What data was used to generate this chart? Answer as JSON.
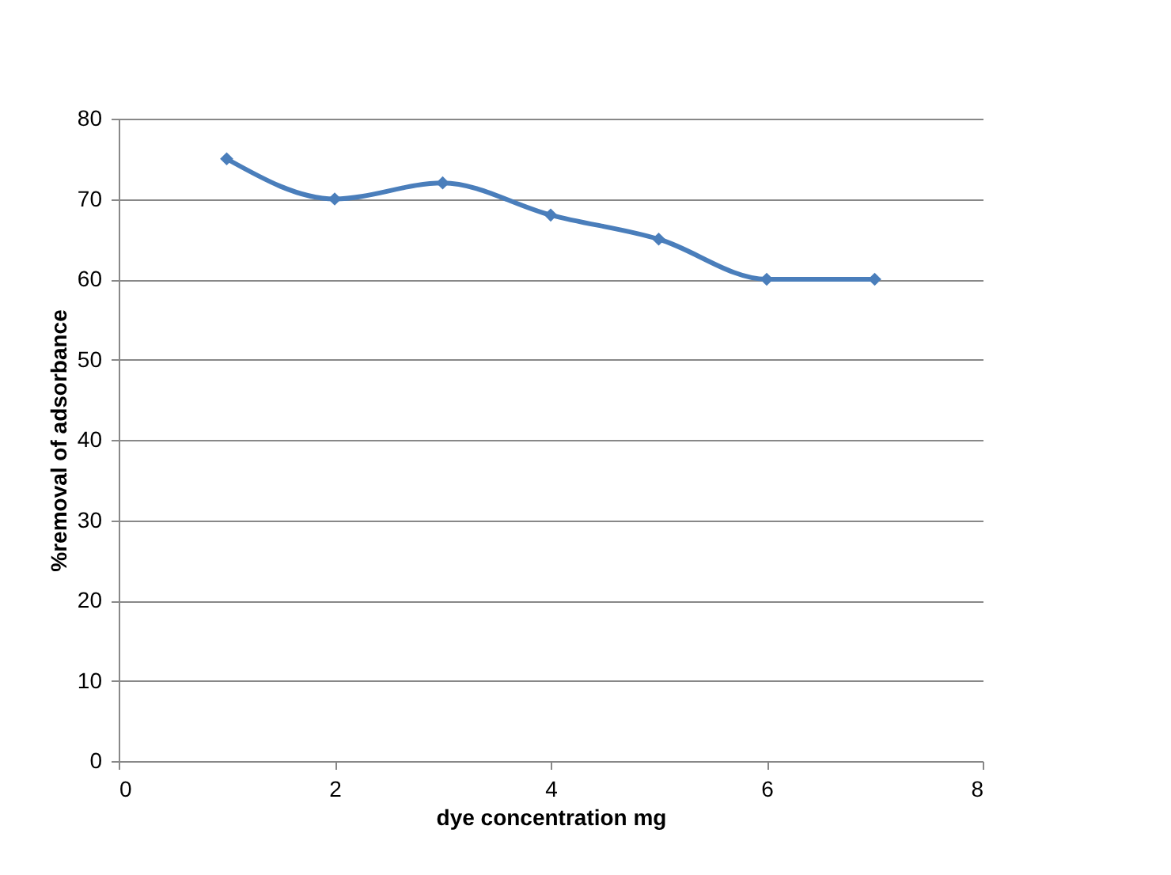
{
  "chart_data": {
    "type": "line",
    "xlabel": "dye concentration mg",
    "ylabel": "%removal of adsorbance",
    "x": [
      1,
      2,
      3,
      4,
      5,
      6,
      7
    ],
    "series": [
      {
        "color": "#4a7ebb",
        "values": [
          75,
          70,
          72,
          68,
          65,
          60,
          60
        ]
      }
    ],
    "xlim": [
      0,
      8
    ],
    "xticks": [
      0,
      2,
      4,
      6,
      8
    ],
    "ylim": [
      0,
      80
    ],
    "yticks": [
      0,
      10,
      20,
      30,
      40,
      50,
      60,
      70,
      80
    ],
    "grid": "y",
    "marker": "diamond",
    "line_style": "solid",
    "legend": false
  }
}
